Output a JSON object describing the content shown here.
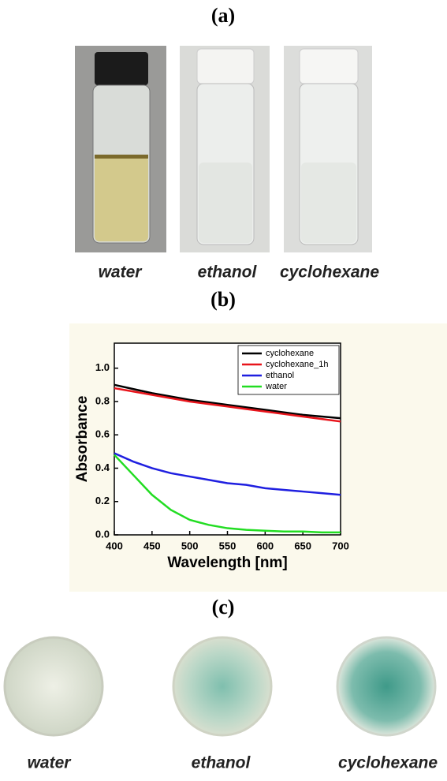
{
  "panel_a": {
    "label": "(a)",
    "vials": [
      "water",
      "ethanol",
      "cyclohexane"
    ]
  },
  "panel_b": {
    "label": "(b)"
  },
  "chart_data": {
    "type": "line",
    "x_label": "Wavelength [nm]",
    "y_label": "Absorbance",
    "x": [
      400,
      425,
      450,
      475,
      500,
      525,
      550,
      575,
      600,
      625,
      650,
      675,
      700
    ],
    "series": [
      {
        "name": "cyclohexane",
        "color": "#000000",
        "values": [
          0.9,
          0.875,
          0.85,
          0.83,
          0.81,
          0.795,
          0.78,
          0.765,
          0.75,
          0.735,
          0.72,
          0.71,
          0.7
        ]
      },
      {
        "name": "cyclohexane_1h",
        "color": "#e8141b",
        "values": [
          0.88,
          0.86,
          0.84,
          0.82,
          0.8,
          0.785,
          0.77,
          0.755,
          0.74,
          0.725,
          0.71,
          0.695,
          0.68
        ]
      },
      {
        "name": "ethanol",
        "color": "#1f1fe0",
        "values": [
          0.49,
          0.44,
          0.4,
          0.37,
          0.35,
          0.33,
          0.31,
          0.3,
          0.28,
          0.27,
          0.26,
          0.25,
          0.24
        ]
      },
      {
        "name": "water",
        "color": "#22dd22",
        "values": [
          0.48,
          0.36,
          0.24,
          0.15,
          0.09,
          0.06,
          0.04,
          0.03,
          0.025,
          0.02,
          0.02,
          0.015,
          0.015
        ]
      }
    ],
    "xlim": [
      400,
      700
    ],
    "xticks": [
      400,
      450,
      500,
      550,
      600,
      650,
      700
    ],
    "ylim": [
      0,
      1.15
    ],
    "yticks": [
      {
        "value": 0,
        "label": "0.0"
      },
      0.2,
      0.4,
      0.6,
      0.8,
      {
        "value": 1,
        "label": "1.0"
      }
    ],
    "legend": "top-right"
  },
  "panel_c": {
    "label": "(c)",
    "dishes": [
      "water",
      "ethanol",
      "cyclohexane"
    ]
  }
}
